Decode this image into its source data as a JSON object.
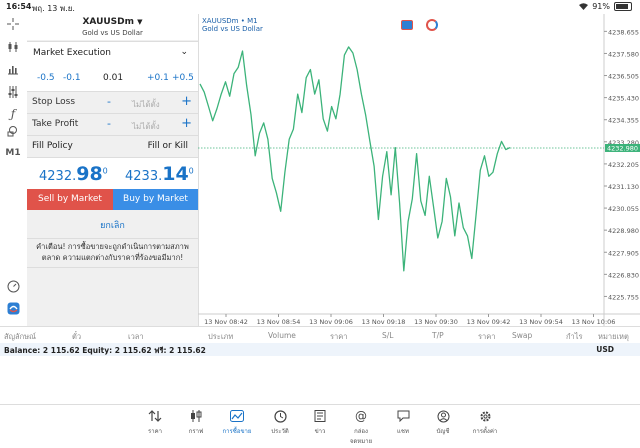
{
  "status": {
    "time": "16:54",
    "date": "พฤ. 13 พ.ย.",
    "battery": "91%"
  },
  "toolbar": {
    "timeframe": "M1"
  },
  "symbol": {
    "name": "XAUUSDm",
    "desc": "Gold vs US Dollar"
  },
  "order": {
    "execution": "Market Execution",
    "vol_minus_big": "-0.5",
    "vol_minus_small": "-0.1",
    "volume": "0.01",
    "vol_plus_small": "+0.1",
    "vol_plus_big": "+0.5",
    "stop_loss_label": "Stop Loss",
    "take_profit_label": "Take Profit",
    "sl_placeholder": "ไม่ได้ตั้ง",
    "tp_placeholder": "ไม่ได้ตั้ง",
    "minus": "-",
    "plus": "+",
    "fill_policy_label": "Fill Policy",
    "fill_policy_value": "Fill or Kill",
    "bid_main": "4232.",
    "bid_big": "98",
    "bid_sup": "0",
    "ask_main": "4233.",
    "ask_big": "14",
    "ask_sup": "0",
    "sell_label": "Sell by Market",
    "buy_label": "Buy by Market",
    "cancel_label": "ยกเลิก",
    "warning": "คำเตือน! การซื้อขายจะถูกดำเนินการตามสภาพตลาด ความแตกต่างกับราคาที่ร้องขอมีมาก!"
  },
  "chart_data": {
    "type": "line",
    "title": "XAUUSDm • M1",
    "subtitle": "Gold vs US Dollar",
    "color": "#3cb37a",
    "ylim": [
      4224.9,
      4239.5
    ],
    "yticks": [
      4238.655,
      4237.58,
      4236.505,
      4235.43,
      4234.355,
      4233.28,
      4232.205,
      4231.13,
      4230.055,
      4228.98,
      4227.905,
      4226.83,
      4225.755
    ],
    "ytick_labels": [
      "4238.655",
      "4237.580",
      "4236.505",
      "4235.430",
      "4234.355",
      "4233.280",
      "4232.205",
      "4231.130",
      "4230.055",
      "4228.980",
      "4227.905",
      "4226.830",
      "4225.755"
    ],
    "xlabels": [
      "13 Nov 08:42",
      "13 Nov 08:54",
      "13 Nov 09:06",
      "13 Nov 09:18",
      "13 Nov 09:30",
      "13 Nov 09:42",
      "13 Nov 09:54",
      "13 Nov 10:06"
    ],
    "current_price": 4232.98,
    "current_price_label": "4232.980",
    "values": [
      4236.1,
      4235.7,
      4235.0,
      4234.3,
      4234.9,
      4235.6,
      4236.2,
      4235.5,
      4236.6,
      4236.9,
      4237.7,
      4236.0,
      4234.6,
      4232.6,
      4233.7,
      4234.2,
      4233.4,
      4231.5,
      4230.8,
      4229.9,
      4231.8,
      4233.4,
      4233.9,
      4235.6,
      4234.7,
      4236.4,
      4236.8,
      4235.6,
      4236.3,
      4234.4,
      4233.8,
      4235.0,
      4234.4,
      4235.6,
      4237.5,
      4237.9,
      4237.6,
      4236.8,
      4235.6,
      4234.6,
      4233.3,
      4232.1,
      4229.5,
      4231.6,
      4232.8,
      4230.7,
      4233.0,
      4230.3,
      4227.0,
      4229.4,
      4230.5,
      4232.7,
      4230.4,
      4229.7,
      4231.6,
      4230.1,
      4228.6,
      4229.4,
      4231.5,
      4230.6,
      4228.7,
      4230.3,
      4229.1,
      4228.7,
      4227.6,
      4229.7,
      4231.9,
      4232.6,
      4231.6,
      4231.8,
      4232.7,
      4233.3,
      4232.9,
      4233.0
    ]
  },
  "table_header": [
    "สัญลักษณ์",
    "ตั๋ว",
    "เวลา",
    "ประเภท",
    "Volume",
    "ราคา",
    "S/L",
    "T/P",
    "ราคา",
    "Swap",
    "กำไร",
    "หมายเหตุ"
  ],
  "balance": {
    "text": "Balance: 2 115.62 Equity: 2 115.62 ฟรี: 2 115.62",
    "currency": "USD"
  },
  "tabs": [
    "ราคา",
    "กราฟ",
    "การซื้อขาย",
    "ประวัติ",
    "ข่าว",
    "กล่องจดหมาย",
    "แชท",
    "บัญชี",
    "การตั้งค่า"
  ]
}
